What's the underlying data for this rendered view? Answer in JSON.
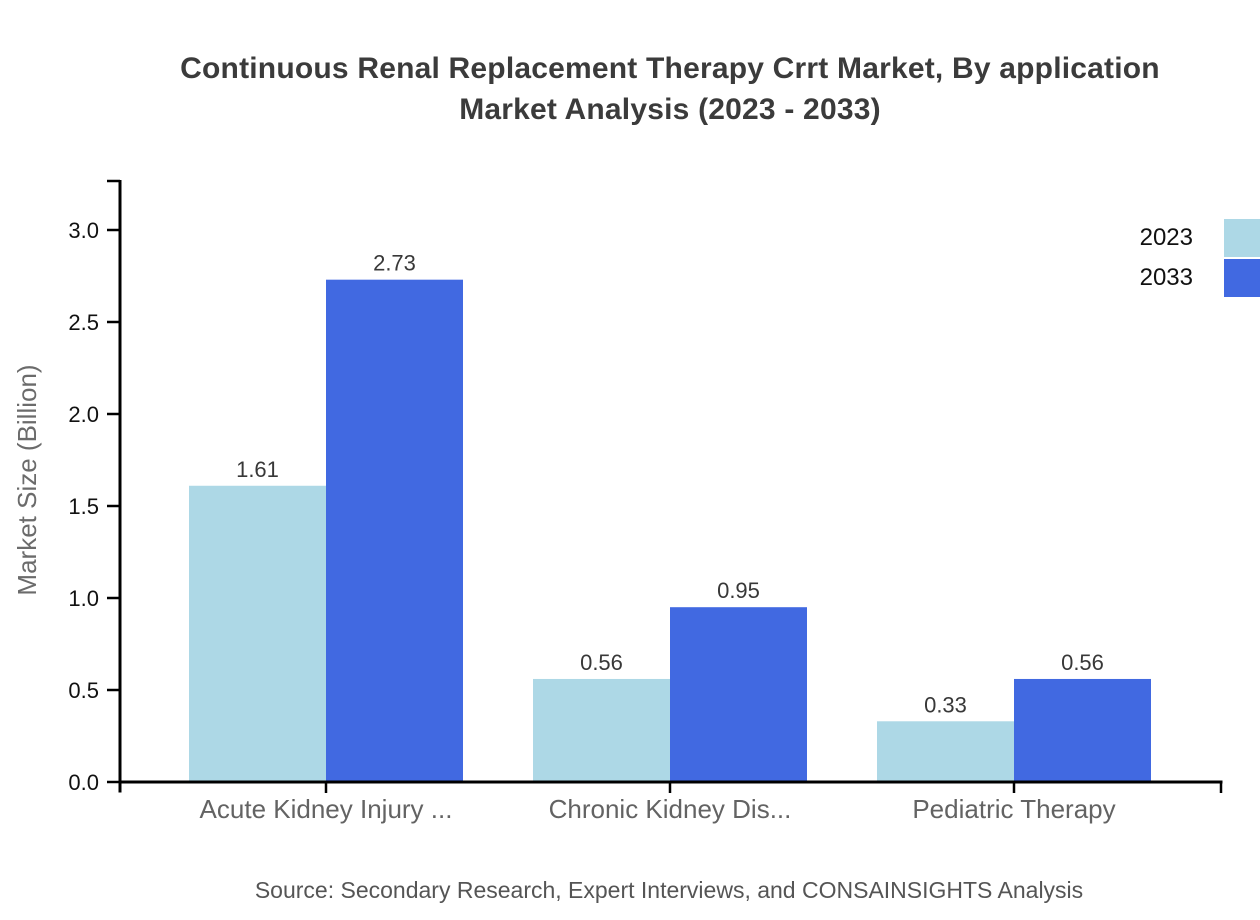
{
  "page": {
    "title_lines": [
      "Continuous Renal Replacement Therapy Crrt Market, By application",
      "Market Analysis (2023 - 2033)"
    ],
    "source_note": "Source: Secondary Research, Expert Interviews, and CONSAINSIGHTS Analysis"
  },
  "chart_data": {
    "type": "bar",
    "title": "Continuous Renal Replacement Therapy Crrt Market, By application Market Analysis (2023 - 2033)",
    "categories": [
      "Acute Kidney Injury ...",
      "Chronic Kidney Dis...",
      "Pediatric Therapy"
    ],
    "series": [
      {
        "name": "2023",
        "color": "#ADD8E6",
        "values": [
          1.61,
          0.56,
          0.33
        ]
      },
      {
        "name": "2033",
        "color": "#4169E1",
        "values": [
          2.73,
          0.95,
          0.56
        ]
      }
    ],
    "xlabel": "",
    "ylabel": "Market Size (Billion)",
    "ylim": [
      0,
      3.0
    ],
    "yticks": [
      0.0,
      0.5,
      1.0,
      1.5,
      2.0,
      2.5,
      3.0
    ],
    "grid": false,
    "legend_position": "top-right",
    "value_labels": true,
    "axis_color": "#000000",
    "value_label_color": "#383838",
    "tick_label_color": "#111111",
    "category_label_color": "#636363",
    "ylabel_color": "#6b6b6b"
  }
}
